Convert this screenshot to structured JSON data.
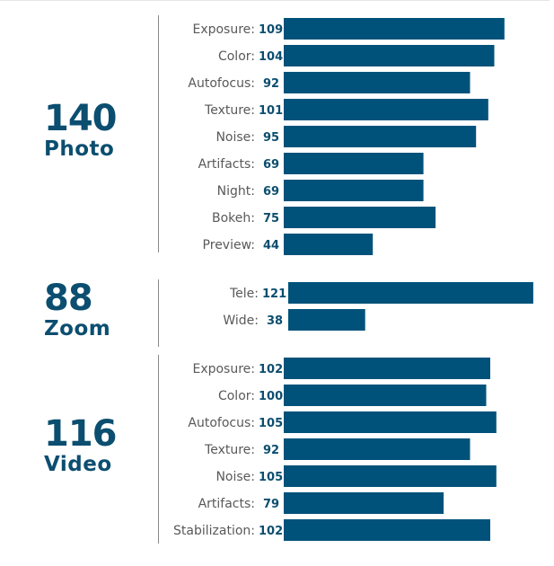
{
  "chart_data": {
    "type": "bar",
    "orientation": "horizontal",
    "bar_color": "#00527a",
    "groups": [
      {
        "score": "140",
        "name": "Photo",
        "categories": [
          "Exposure:",
          "Color:",
          "Autofocus:",
          "Texture:",
          "Noise:",
          "Artifacts:",
          "Night:",
          "Bokeh:",
          "Preview:"
        ],
        "values": [
          109,
          104,
          92,
          101,
          95,
          69,
          69,
          75,
          44
        ]
      },
      {
        "score": "88",
        "name": "Zoom",
        "categories": [
          "Tele:",
          "Wide:"
        ],
        "values": [
          121,
          38
        ]
      },
      {
        "score": "116",
        "name": "Video",
        "categories": [
          "Exposure:",
          "Color:",
          "Autofocus:",
          "Texture:",
          "Noise:",
          "Artifacts:",
          "Stabilization:"
        ],
        "values": [
          102,
          100,
          105,
          92,
          105,
          79,
          102
        ]
      }
    ]
  }
}
